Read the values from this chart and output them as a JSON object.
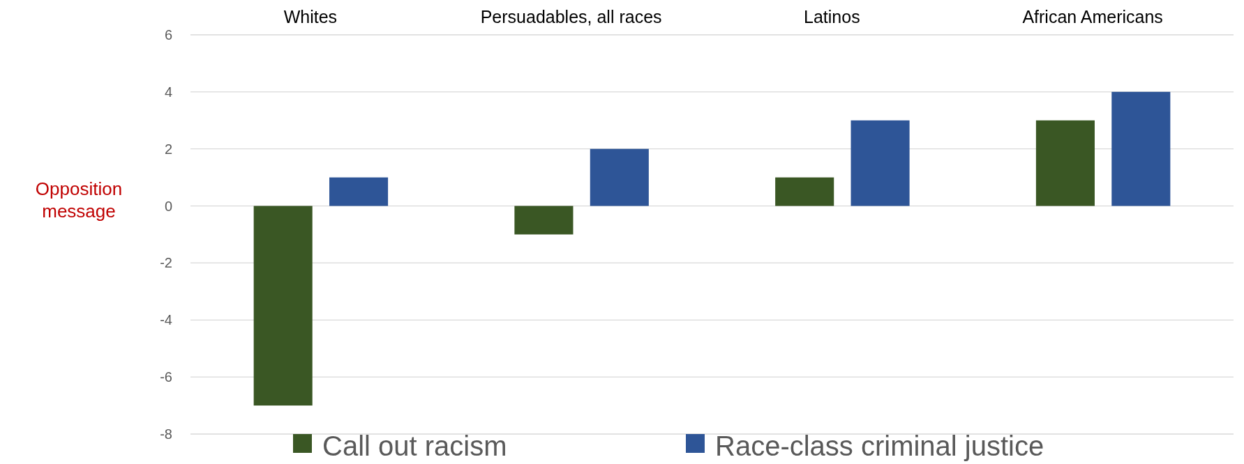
{
  "chart_data": {
    "type": "bar",
    "ylabel": "Opposition message",
    "categories": [
      "Whites",
      "Persuadables, all races",
      "Latinos",
      "African Americans"
    ],
    "series": [
      {
        "name": "Call out racism",
        "color": "#3a5724",
        "values": [
          -7,
          -1,
          1,
          3
        ]
      },
      {
        "name": "Race-class criminal justice",
        "color": "#2e5597",
        "values": [
          1,
          2,
          3,
          4
        ]
      }
    ],
    "ylim": [
      -8,
      6
    ],
    "yticks": [
      -8,
      -6,
      -4,
      -2,
      0,
      2,
      4,
      6
    ],
    "grid": "y",
    "legend": "bottom"
  }
}
